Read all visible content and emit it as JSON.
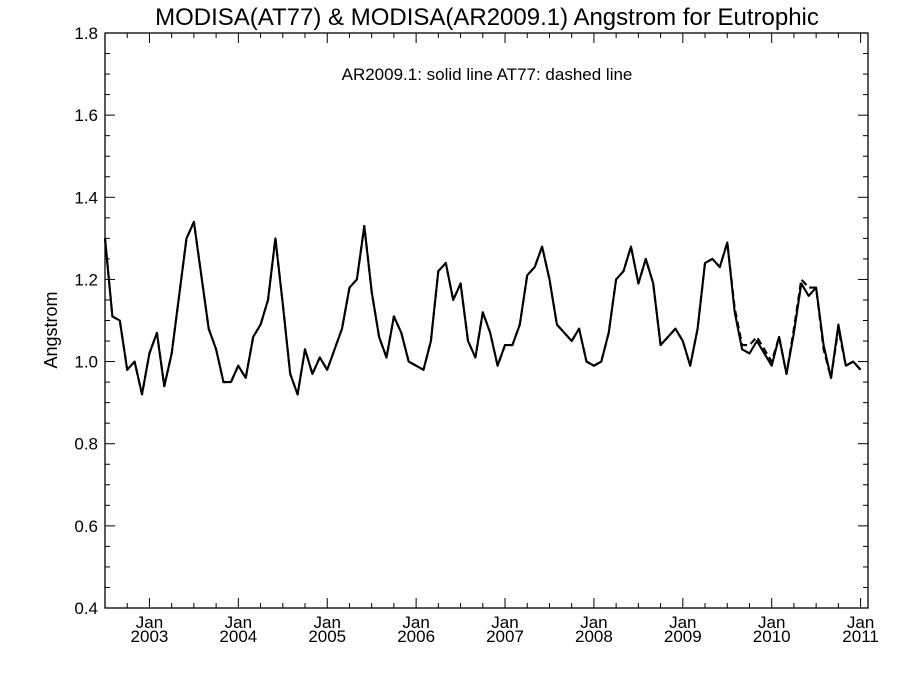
{
  "chart_data": {
    "type": "line",
    "title": "MODISA(AT77) & MODISA(AR2009.1)  Angstrom for Eutrophic",
    "annotation": "AR2009.1: solid line   AT77: dashed line",
    "ylabel": "Angstrom",
    "xlabel": "",
    "xlim": [
      "2002-07",
      "2011-02"
    ],
    "ylim": [
      0.4,
      1.8
    ],
    "yticks": [
      "0.4",
      "0.6",
      "0.8",
      "1.0",
      "1.2",
      "1.4",
      "1.6",
      "1.8"
    ],
    "xticks": [
      {
        "month": "Jan",
        "year": "2003",
        "date": "2003-01"
      },
      {
        "month": "Jan",
        "year": "2004",
        "date": "2004-01"
      },
      {
        "month": "Jan",
        "year": "2005",
        "date": "2005-01"
      },
      {
        "month": "Jan",
        "year": "2006",
        "date": "2006-01"
      },
      {
        "month": "Jan",
        "year": "2007",
        "date": "2007-01"
      },
      {
        "month": "Jan",
        "year": "2008",
        "date": "2008-01"
      },
      {
        "month": "Jan",
        "year": "2009",
        "date": "2009-01"
      },
      {
        "month": "Jan",
        "year": "2010",
        "date": "2010-01"
      },
      {
        "month": "Jan",
        "year": "2011",
        "date": "2011-01"
      }
    ],
    "grid": false,
    "series": [
      {
        "name": "AR2009.1",
        "style": "solid",
        "color": "#000000",
        "start": "2002-07",
        "values": [
          1.3,
          1.11,
          1.1,
          0.98,
          1.0,
          0.92,
          1.02,
          1.07,
          0.94,
          1.02,
          1.16,
          1.3,
          1.34,
          1.21,
          1.08,
          1.03,
          0.95,
          0.95,
          0.99,
          0.96,
          1.06,
          1.09,
          1.15,
          1.3,
          1.14,
          0.97,
          0.92,
          1.03,
          0.97,
          1.01,
          0.98,
          1.03,
          1.08,
          1.18,
          1.2,
          1.33,
          1.17,
          1.06,
          1.01,
          1.11,
          1.07,
          1.0,
          0.99,
          0.98,
          1.05,
          1.22,
          1.24,
          1.15,
          1.19,
          1.05,
          1.01,
          1.12,
          1.07,
          0.99,
          1.04,
          1.04,
          1.09,
          1.21,
          1.23,
          1.28,
          1.2,
          1.09,
          1.07,
          1.05,
          1.08,
          1.0,
          0.99,
          1.0,
          1.07,
          1.2,
          1.22,
          1.28,
          1.19,
          1.25,
          1.19,
          1.04,
          1.06,
          1.08,
          1.05,
          0.99,
          1.08,
          1.24,
          1.25,
          1.23,
          1.29,
          1.12,
          1.03,
          1.02,
          1.05,
          1.02,
          0.99,
          1.06,
          0.97,
          1.07,
          1.19,
          1.16,
          1.18,
          1.04,
          0.96,
          1.09,
          0.99,
          1.0,
          0.98
        ]
      },
      {
        "name": "AT77",
        "style": "dashed",
        "color": "#000000",
        "start": "2002-07",
        "values": [
          1.3,
          1.11,
          1.1,
          0.98,
          1.0,
          0.92,
          1.02,
          1.07,
          0.94,
          1.02,
          1.16,
          1.3,
          1.34,
          1.21,
          1.08,
          1.03,
          0.95,
          0.95,
          0.99,
          0.96,
          1.06,
          1.09,
          1.15,
          1.3,
          1.14,
          0.97,
          0.92,
          1.03,
          0.97,
          1.01,
          0.98,
          1.03,
          1.08,
          1.18,
          1.2,
          1.33,
          1.17,
          1.06,
          1.01,
          1.11,
          1.07,
          1.0,
          0.99,
          0.98,
          1.05,
          1.22,
          1.24,
          1.15,
          1.19,
          1.05,
          1.01,
          1.12,
          1.07,
          0.99,
          1.04,
          1.04,
          1.09,
          1.21,
          1.23,
          1.28,
          1.2,
          1.09,
          1.07,
          1.05,
          1.08,
          1.0,
          0.99,
          1.0,
          1.07,
          1.2,
          1.22,
          1.28,
          1.19,
          1.25,
          1.19,
          1.04,
          1.06,
          1.08,
          1.05,
          0.99,
          1.08,
          1.24,
          1.25,
          1.23,
          1.29,
          1.13,
          1.04,
          1.04,
          1.06,
          1.03,
          1.0,
          1.06,
          0.97,
          1.08,
          1.2,
          1.18,
          1.18,
          1.03,
          0.96,
          1.08,
          0.99,
          1.0,
          0.98
        ]
      }
    ]
  }
}
